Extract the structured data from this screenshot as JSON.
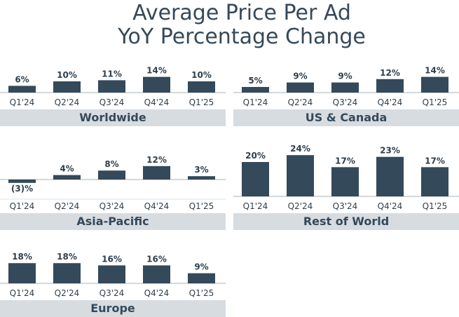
{
  "title": {
    "line1": "Average Price Per Ad",
    "line2": "YoY Percentage Change"
  },
  "colors": {
    "bar": "#34495a",
    "text": "#2f3f4c",
    "label_band": "#d7dce1",
    "axis": "#a7b1ba"
  },
  "chart_data": [
    {
      "type": "bar",
      "region": "Worldwide",
      "categories": [
        "Q1'24",
        "Q2'24",
        "Q3'24",
        "Q4'24",
        "Q1'25"
      ],
      "values": [
        6,
        10,
        11,
        14,
        10
      ],
      "value_labels": [
        "6%",
        "10%",
        "11%",
        "14%",
        "10%"
      ],
      "unit": "%",
      "xlabel": "Worldwide",
      "grid": false
    },
    {
      "type": "bar",
      "region": "US & Canada",
      "categories": [
        "Q1'24",
        "Q2'24",
        "Q3'24",
        "Q4'24",
        "Q1'25"
      ],
      "values": [
        5,
        9,
        9,
        12,
        14
      ],
      "value_labels": [
        "5%",
        "9%",
        "9%",
        "12%",
        "14%"
      ],
      "unit": "%",
      "xlabel": "US & Canada",
      "grid": false
    },
    {
      "type": "bar",
      "region": "Asia-Pacific",
      "categories": [
        "Q1'24",
        "Q2'24",
        "Q3'24",
        "Q4'24",
        "Q1'25"
      ],
      "values": [
        -3,
        4,
        8,
        12,
        3
      ],
      "value_labels": [
        "(3)%",
        "4%",
        "8%",
        "12%",
        "3%"
      ],
      "unit": "%",
      "xlabel": "Asia-Pacific",
      "grid": false
    },
    {
      "type": "bar",
      "region": "Rest of World",
      "categories": [
        "Q1'24",
        "Q2'24",
        "Q3'24",
        "Q4'24",
        "Q1'25"
      ],
      "values": [
        20,
        24,
        17,
        23,
        17
      ],
      "value_labels": [
        "20%",
        "24%",
        "17%",
        "23%",
        "17%"
      ],
      "unit": "%",
      "xlabel": "Rest of World",
      "grid": false
    },
    {
      "type": "bar",
      "region": "Europe",
      "categories": [
        "Q1'24",
        "Q2'24",
        "Q3'24",
        "Q4'24",
        "Q1'25"
      ],
      "values": [
        18,
        18,
        16,
        16,
        9
      ],
      "value_labels": [
        "18%",
        "18%",
        "16%",
        "16%",
        "9%"
      ],
      "unit": "%",
      "xlabel": "Europe",
      "grid": false
    }
  ]
}
